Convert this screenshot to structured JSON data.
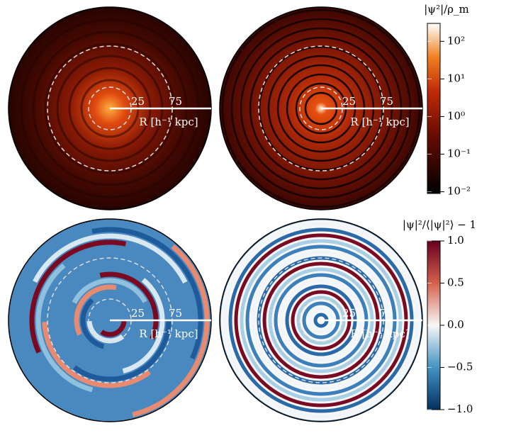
{
  "colorbars": [
    {
      "label": "|ψ²|/ρ_m",
      "scale": "log",
      "lim": [
        0.009,
        300
      ],
      "ticks": [
        {
          "value": 100,
          "label": "10²"
        },
        {
          "value": 10,
          "label": "10¹"
        },
        {
          "value": 1,
          "label": "10⁰"
        },
        {
          "value": 0.1,
          "label": "10⁻¹"
        },
        {
          "value": 0.01,
          "label": "10⁻²"
        }
      ]
    },
    {
      "label": "|ψ|²/⟨|ψ|²⟩ − 1",
      "scale": "linear",
      "lim": [
        -1,
        1
      ],
      "ticks": [
        {
          "value": 1,
          "label": "1.0"
        },
        0.5,
        {
          "value": 0,
          "label": "0.0"
        },
        {
          "value": -0.5,
          "label": "−0.5"
        },
        {
          "value": -1,
          "label": "−1.0"
        }
      ]
    }
  ],
  "panels": [
    {
      "ring_labels": [
        "25",
        "75"
      ],
      "axis_label": "R [h⁻¹ kpc]"
    },
    {
      "ring_labels": [
        "25",
        "75"
      ],
      "axis_label": "R [h⁻¹ kpc]"
    },
    {
      "ring_labels": [
        "25",
        "75"
      ],
      "axis_label": "R [h⁻¹ kpc]"
    },
    {
      "ring_labels": [
        "25",
        "75"
      ],
      "axis_label": "R [h⁻¹ kpc]"
    }
  ]
}
